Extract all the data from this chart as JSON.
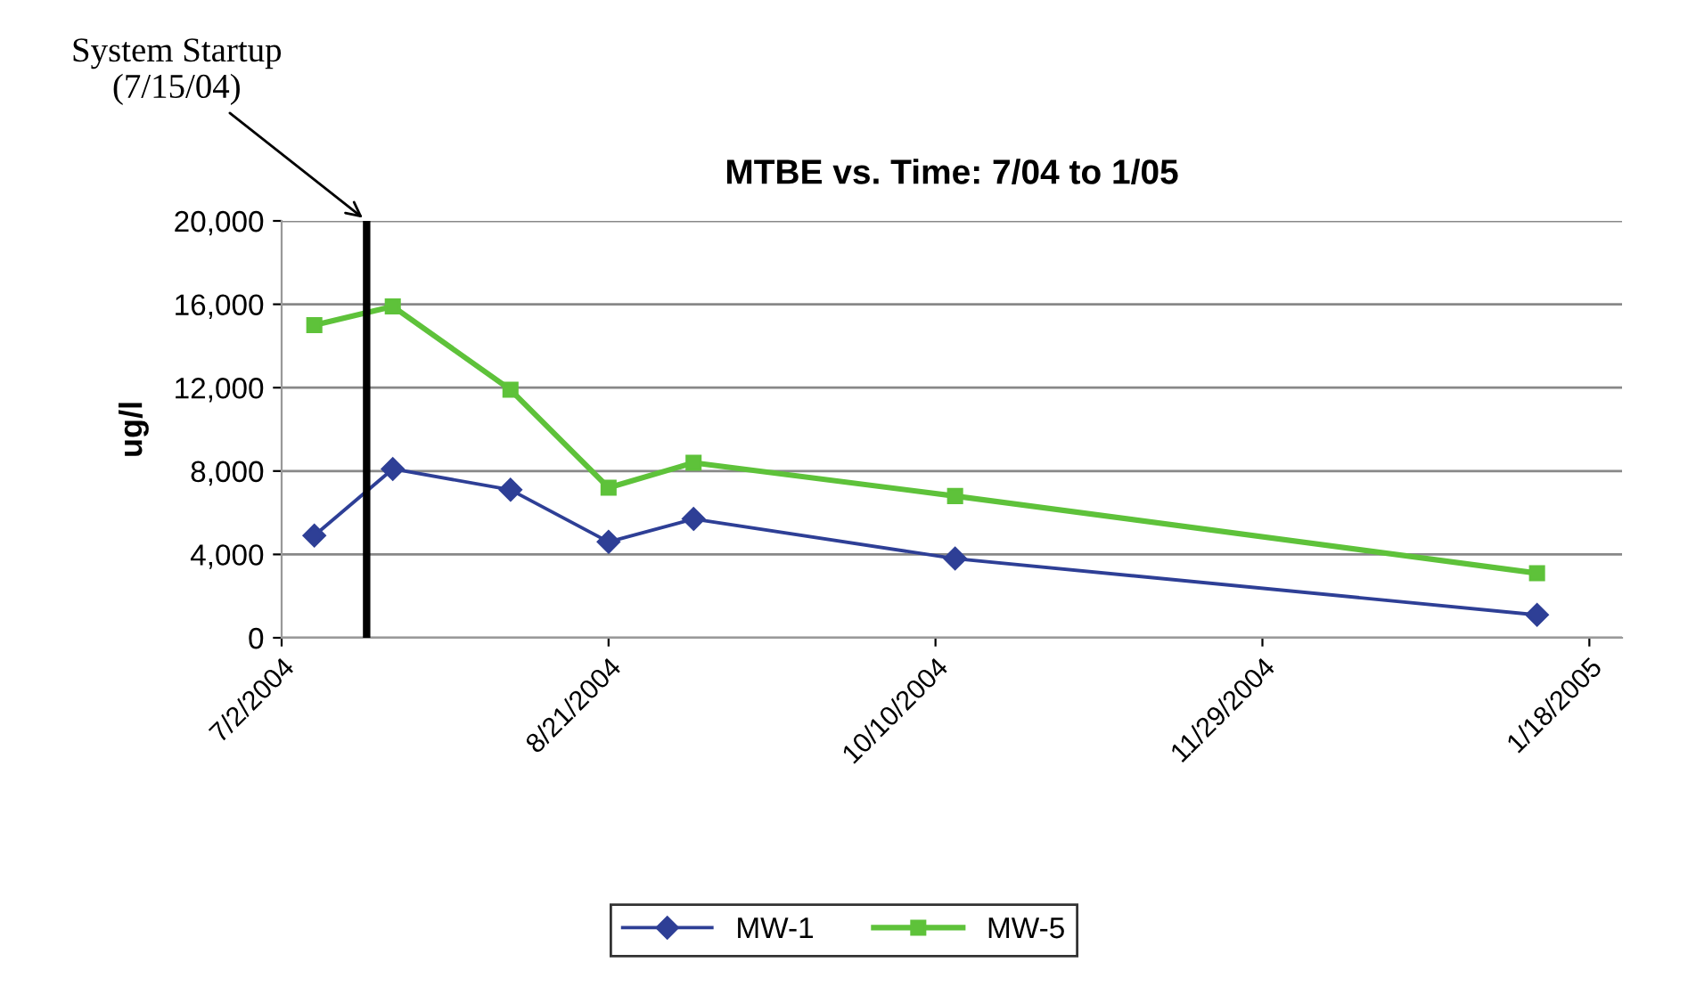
{
  "chart_data": {
    "type": "line",
    "title": "MTBE vs. Time: 7/04 to 1/05",
    "ylabel": "ug/l",
    "x": [
      "2004-07-07",
      "2004-07-19",
      "2004-08-06",
      "2004-08-21",
      "2004-09-03",
      "2004-10-13",
      "2005-01-10"
    ],
    "series": [
      {
        "name": "MW-1",
        "color": "#2e3f96",
        "marker": "diamond",
        "values": [
          4900,
          8100,
          7100,
          4600,
          5700,
          3800,
          1100
        ]
      },
      {
        "name": "MW-5",
        "color": "#5ec23a",
        "marker": "square",
        "values": [
          15000,
          15900,
          11900,
          7200,
          8400,
          6800,
          3100
        ]
      }
    ],
    "xlim": [
      "2004-07-02",
      "2005-01-23"
    ],
    "xticks": [
      {
        "value": "2004-07-02",
        "label": "7/2/2004"
      },
      {
        "value": "2004-08-21",
        "label": "8/21/2004"
      },
      {
        "value": "2004-10-10",
        "label": "10/10/2004"
      },
      {
        "value": "2004-11-29",
        "label": "11/29/2004"
      },
      {
        "value": "2005-01-18",
        "label": "1/18/2005"
      }
    ],
    "ylim": [
      0,
      20000
    ],
    "yticks": [
      {
        "value": 0,
        "label": "0"
      },
      {
        "value": 4000,
        "label": "4,000"
      },
      {
        "value": 8000,
        "label": "8,000"
      },
      {
        "value": 12000,
        "label": "12,000"
      },
      {
        "value": 16000,
        "label": "16,000"
      },
      {
        "value": 20000,
        "label": "20,000"
      }
    ],
    "ref_lines": [
      {
        "axis": "x",
        "value": "2004-07-15",
        "label": "System Startup\n(7/15/04)",
        "color": "#000000"
      }
    ],
    "grid": "y",
    "legend": "bottom"
  }
}
